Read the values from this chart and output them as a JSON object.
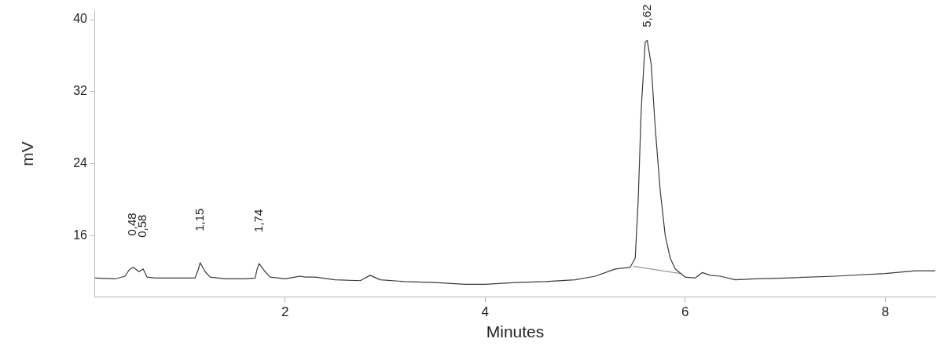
{
  "chart_data": {
    "type": "line",
    "xlabel": "Minutes",
    "ylabel": "mV",
    "xlim": [
      0.1,
      8.5
    ],
    "ylim": [
      9.2,
      41
    ],
    "xticks": [
      2,
      4,
      6,
      8
    ],
    "yticks": [
      16,
      24,
      32,
      40
    ],
    "grid": false,
    "legend": false,
    "marker": "none",
    "line_style": "solid",
    "series": [
      {
        "color": "#3a3a3a",
        "x": [
          0.1,
          0.3,
          0.4,
          0.44,
          0.48,
          0.54,
          0.58,
          0.62,
          0.7,
          1.0,
          1.1,
          1.13,
          1.15,
          1.2,
          1.25,
          1.4,
          1.6,
          1.7,
          1.72,
          1.74,
          1.8,
          1.85,
          2.0,
          2.1,
          2.15,
          2.2,
          2.3,
          2.5,
          2.75,
          2.85,
          2.95,
          3.2,
          3.5,
          3.8,
          4.0,
          4.3,
          4.6,
          4.9,
          5.1,
          5.3,
          5.45,
          5.5,
          5.53,
          5.56,
          5.6,
          5.62,
          5.66,
          5.7,
          5.75,
          5.8,
          5.85,
          5.9,
          6.0,
          6.1,
          6.17,
          6.25,
          6.35,
          6.5,
          6.7,
          7.0,
          7.5,
          8.0,
          8.3,
          8.5
        ],
        "values": [
          11.3,
          11.2,
          11.5,
          12.2,
          12.5,
          12.0,
          12.3,
          11.4,
          11.3,
          11.3,
          11.3,
          12.2,
          13.0,
          12.0,
          11.4,
          11.2,
          11.2,
          11.3,
          12.3,
          12.9,
          12.0,
          11.4,
          11.2,
          11.4,
          11.5,
          11.4,
          11.4,
          11.1,
          11.0,
          11.6,
          11.1,
          10.9,
          10.8,
          10.6,
          10.6,
          10.8,
          10.9,
          11.1,
          11.5,
          12.3,
          12.5,
          13.5,
          20,
          30,
          37.5,
          37.7,
          35,
          28,
          21,
          16,
          13.5,
          12.3,
          11.4,
          11.3,
          11.9,
          11.6,
          11.5,
          11.1,
          11.2,
          11.3,
          11.5,
          11.8,
          12.1,
          12.1
        ]
      },
      {
        "color": "#9a9a9a",
        "x": [
          5.48,
          5.95
        ],
        "values": [
          12.6,
          11.8
        ]
      }
    ],
    "annotations": [
      {
        "text": "0,48",
        "x": 0.48,
        "y": 12.5
      },
      {
        "text": "0,58",
        "x": 0.58,
        "y": 12.3
      },
      {
        "text": "1,15",
        "x": 1.15,
        "y": 13.0
      },
      {
        "text": "1,74",
        "x": 1.74,
        "y": 12.9
      },
      {
        "text": "5,62",
        "x": 5.62,
        "y": 37.7
      }
    ]
  }
}
